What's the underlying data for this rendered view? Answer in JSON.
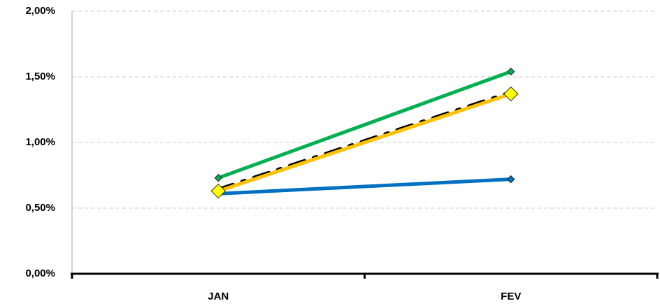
{
  "chart_data": {
    "type": "line",
    "categories": [
      "JAN",
      "FEV"
    ],
    "series": [
      {
        "color": "#0070c0",
        "marker": "diamond",
        "marker_color": "#0070c0",
        "marker_size": 5,
        "values": [
          0.61,
          0.72
        ]
      },
      {
        "color": "#00b050",
        "marker": "diamond",
        "marker_color": "#00b050",
        "marker_size": 5,
        "values": [
          0.73,
          1.54
        ]
      },
      {
        "color": "#ffc000",
        "marker": "diamond",
        "marker_color": "#ffff00",
        "marker_size": 10,
        "values": [
          0.63,
          1.37
        ]
      },
      {
        "color": "#000000",
        "dash": "dashdot",
        "values": [
          0.64,
          1.38
        ]
      }
    ],
    "ylim": [
      0,
      2
    ],
    "yticks": [
      {
        "value": 0,
        "label": "0,00%"
      },
      {
        "value": 0.5,
        "label": "0,50%"
      },
      {
        "value": 1,
        "label": "1,00%"
      },
      {
        "value": 1.5,
        "label": "1,50%"
      },
      {
        "value": 2,
        "label": "2,00%"
      }
    ],
    "grid": true
  }
}
